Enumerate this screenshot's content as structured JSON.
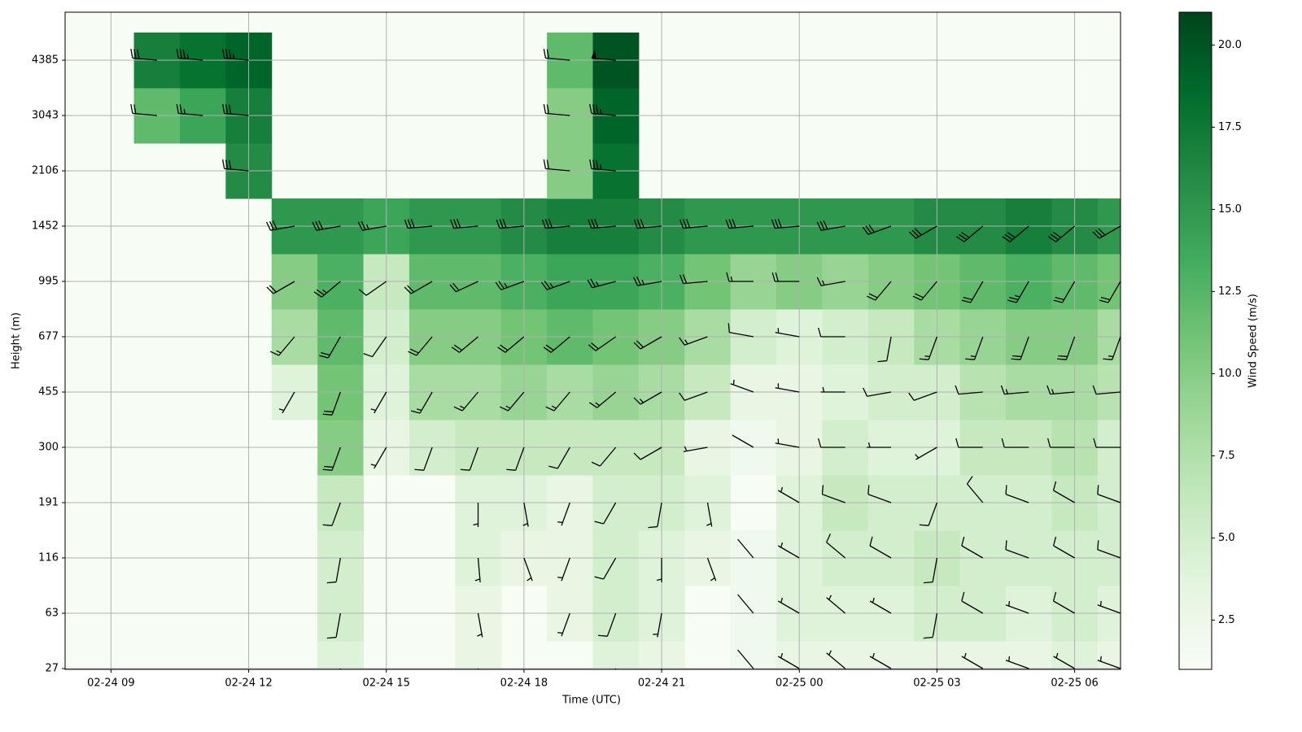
{
  "chart_data": {
    "type": "heatmap-barbs",
    "x_label": "Time (UTC)",
    "y_label": "Height (m)",
    "colorbar_label": "Wind Speed (m/s)",
    "x": [
      "02-24 10",
      "02-24 11",
      "02-24 12",
      "02-24 13",
      "02-24 14",
      "02-24 15",
      "02-24 16",
      "02-24 17",
      "02-24 18",
      "02-24 19",
      "02-24 20",
      "02-24 21",
      "02-24 22",
      "02-24 23",
      "02-25 00",
      "02-25 01",
      "02-25 02",
      "02-25 03",
      "02-25 04",
      "02-25 05",
      "02-25 06",
      "02-25 07"
    ],
    "xlim": [
      "02-24 08",
      "02-25 07"
    ],
    "xticks": [
      "02-24 09",
      "02-24 12",
      "02-24 15",
      "02-24 18",
      "02-24 21",
      "02-25 00",
      "02-25 03",
      "02-25 06"
    ],
    "heights": [
      27,
      63,
      116,
      191,
      300,
      455,
      677,
      995,
      1452,
      2106,
      3043,
      4385
    ],
    "speed": [
      [
        null,
        null,
        null,
        null,
        4,
        null,
        null,
        3,
        null,
        null,
        4,
        3,
        null,
        2,
        3,
        3,
        3,
        3,
        3,
        3,
        4,
        3
      ],
      [
        null,
        null,
        null,
        null,
        5,
        null,
        null,
        3,
        null,
        3,
        5,
        4,
        null,
        2,
        4,
        4,
        4,
        5,
        5,
        4,
        5,
        4
      ],
      [
        null,
        null,
        null,
        null,
        5,
        null,
        null,
        4,
        3,
        3,
        5,
        4,
        3,
        2,
        4,
        5,
        5,
        6,
        5,
        5,
        5,
        5
      ],
      [
        null,
        null,
        null,
        null,
        6,
        null,
        null,
        4,
        4,
        3,
        5,
        5,
        4,
        null,
        4,
        6,
        5,
        5,
        5,
        5,
        6,
        5
      ],
      [
        null,
        null,
        null,
        null,
        10,
        3,
        5,
        6,
        6,
        6,
        6,
        6,
        3,
        2,
        3,
        5,
        4,
        4,
        6,
        6,
        7,
        5
      ],
      [
        null,
        null,
        null,
        4,
        11,
        4,
        8,
        8,
        9,
        8,
        9,
        8,
        6,
        3,
        3,
        4,
        5,
        5,
        7,
        8,
        8,
        7
      ],
      [
        null,
        null,
        null,
        8,
        12,
        5,
        10,
        10,
        11,
        12,
        11,
        10,
        8,
        5,
        4,
        5,
        6,
        8,
        9,
        10,
        10,
        8
      ],
      [
        null,
        null,
        null,
        10,
        13,
        6,
        12,
        12,
        13,
        14,
        14,
        13,
        11,
        9,
        10,
        9,
        10,
        11,
        12,
        13,
        12,
        11
      ],
      [
        null,
        null,
        null,
        15,
        15,
        14,
        15,
        15,
        16,
        17,
        17,
        16,
        15,
        15,
        15,
        15,
        15,
        16,
        16,
        17,
        16,
        15
      ],
      [
        null,
        null,
        16,
        null,
        null,
        null,
        null,
        null,
        null,
        10,
        18,
        null,
        null,
        null,
        null,
        null,
        null,
        null,
        null,
        null,
        null,
        null
      ],
      [
        12,
        14,
        17,
        null,
        null,
        null,
        null,
        null,
        null,
        10,
        19,
        null,
        null,
        null,
        null,
        null,
        null,
        null,
        null,
        null,
        null,
        null
      ],
      [
        17,
        18,
        19,
        null,
        null,
        null,
        null,
        null,
        null,
        12,
        20,
        null,
        null,
        null,
        null,
        null,
        null,
        null,
        null,
        null,
        null,
        null
      ]
    ],
    "direction": [
      [
        null,
        null,
        null,
        null,
        190,
        null,
        null,
        170,
        null,
        null,
        200,
        190,
        null,
        320,
        300,
        310,
        300,
        190,
        300,
        290,
        300,
        290
      ],
      [
        null,
        null,
        null,
        null,
        190,
        null,
        null,
        170,
        null,
        200,
        200,
        190,
        null,
        320,
        300,
        310,
        300,
        190,
        300,
        290,
        300,
        290
      ],
      [
        null,
        null,
        null,
        null,
        190,
        null,
        null,
        175,
        160,
        200,
        210,
        180,
        160,
        320,
        300,
        310,
        300,
        190,
        300,
        290,
        300,
        290
      ],
      [
        null,
        null,
        null,
        null,
        200,
        null,
        null,
        180,
        170,
        200,
        210,
        190,
        170,
        null,
        300,
        290,
        290,
        200,
        320,
        290,
        300,
        290
      ],
      [
        null,
        null,
        null,
        null,
        200,
        210,
        200,
        200,
        200,
        210,
        220,
        240,
        260,
        300,
        280,
        270,
        270,
        240,
        270,
        270,
        270,
        270
      ],
      [
        null,
        null,
        null,
        210,
        200,
        210,
        210,
        220,
        220,
        220,
        230,
        240,
        250,
        290,
        280,
        270,
        260,
        250,
        265,
        265,
        265,
        265
      ],
      [
        null,
        null,
        null,
        220,
        210,
        215,
        220,
        230,
        230,
        230,
        235,
        240,
        250,
        280,
        280,
        270,
        190,
        200,
        200,
        200,
        200,
        200
      ],
      [
        null,
        null,
        null,
        240,
        230,
        235,
        240,
        245,
        250,
        250,
        255,
        260,
        265,
        270,
        270,
        260,
        220,
        220,
        210,
        210,
        210,
        210
      ],
      [
        null,
        null,
        null,
        260,
        260,
        260,
        265,
        265,
        265,
        265,
        265,
        265,
        265,
        265,
        265,
        260,
        250,
        240,
        230,
        230,
        230,
        240
      ],
      [
        null,
        null,
        275,
        null,
        null,
        null,
        null,
        null,
        null,
        275,
        275,
        null,
        null,
        null,
        null,
        null,
        null,
        null,
        null,
        null,
        null,
        null
      ],
      [
        275,
        275,
        275,
        null,
        null,
        null,
        null,
        null,
        null,
        275,
        275,
        null,
        null,
        null,
        null,
        null,
        null,
        null,
        null,
        null,
        null,
        null
      ],
      [
        275,
        275,
        275,
        null,
        null,
        null,
        null,
        null,
        null,
        275,
        275,
        null,
        null,
        null,
        null,
        null,
        null,
        null,
        null,
        null,
        null,
        null
      ]
    ],
    "clim": [
      1.0,
      21.0
    ],
    "colorbar_ticks": [
      2.5,
      {
        "value": 5,
        "label": "5.0"
      },
      7.5,
      {
        "value": 10,
        "label": "10.0"
      },
      12.5,
      {
        "value": 15,
        "label": "15.0"
      },
      17.5,
      {
        "value": 20,
        "label": "20.0"
      }
    ],
    "colormap": [
      "#f7fcf5",
      "#e5f5e0",
      "#c7e9c0",
      "#a1d99b",
      "#74c476",
      "#41ab5d",
      "#238b45",
      "#006d2c",
      "#00441b"
    ],
    "barb_color": "#000000",
    "grid": true
  }
}
